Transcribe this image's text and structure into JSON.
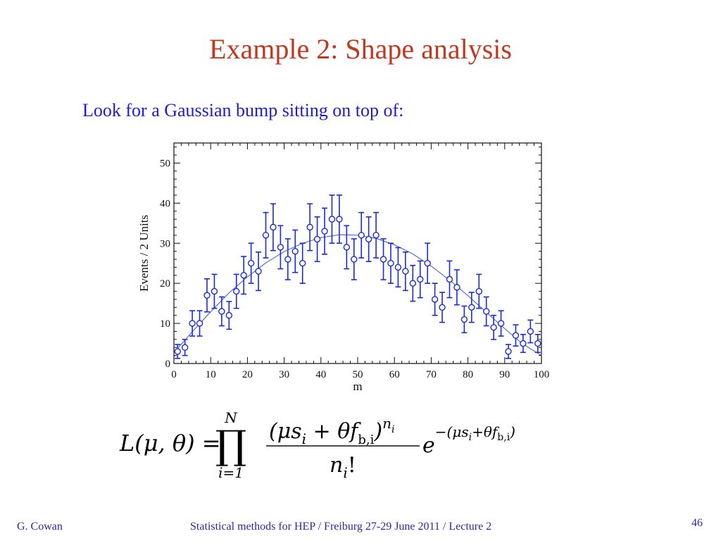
{
  "slide": {
    "title": "Example 2:  Shape analysis",
    "subtitle": "Look for a Gaussian bump sitting on top of:",
    "footer_author": "G. Cowan",
    "footer_course": "Statistical methods for HEP / Freiburg 27-29 June 2011 / Lecture 2",
    "page_number": "46"
  },
  "formula": {
    "lhs": "L(μ, θ) =",
    "product_upper": "N",
    "product_lower": "i=1",
    "numerator": "(μs",
    "numerator_sub_i": "i",
    "numerator_plus": " + θf",
    "numerator_sub_b": "b,i",
    "numerator_close": ")",
    "numerator_power": "n",
    "numerator_power_sub": "i",
    "denominator": "n",
    "denominator_sub": "i",
    "denominator_fact": "!",
    "exp_base": "e",
    "exp_power": "−(μs",
    "exp_sub_i": "i",
    "exp_plus": "+θf",
    "exp_sub_b": "b,i",
    "exp_close": ")"
  },
  "colors": {
    "title": "#c0391e",
    "subtitle": "#1d1bd6",
    "data": "#1a2bd6",
    "curve": "#3a55e0",
    "footer": "#2a2aa8"
  },
  "chart_data": {
    "type": "scatter",
    "xlabel": "m",
    "ylabel": "Events / 2 Units",
    "xlim": [
      0,
      100
    ],
    "ylim": [
      0,
      55
    ],
    "x_ticks": [
      0,
      10,
      20,
      30,
      40,
      50,
      60,
      70,
      80,
      90,
      100
    ],
    "y_ticks": [
      0,
      10,
      20,
      30,
      40,
      50
    ],
    "grid": false,
    "error_bars": "poisson (sqrt(n))",
    "series": [
      {
        "style": "open circles with error bars",
        "x": [
          1,
          3,
          5,
          7,
          9,
          11,
          13,
          15,
          17,
          19,
          21,
          23,
          25,
          27,
          29,
          31,
          33,
          35,
          37,
          39,
          41,
          43,
          45,
          47,
          49,
          51,
          53,
          55,
          57,
          59,
          61,
          63,
          65,
          67,
          69,
          71,
          73,
          75,
          77,
          79,
          81,
          83,
          85,
          87,
          89,
          91,
          93,
          95,
          97,
          99
        ],
        "y": [
          3,
          4,
          10,
          10,
          17,
          18,
          13,
          12,
          18,
          22,
          25,
          23,
          32,
          34,
          29,
          26,
          28,
          25,
          34,
          31,
          33,
          36,
          36,
          29,
          26,
          32,
          31,
          32,
          26,
          25,
          24,
          23,
          20,
          21,
          25,
          16,
          14,
          21,
          19,
          11,
          14,
          18,
          13,
          9,
          10,
          3,
          7,
          5,
          8,
          5
        ]
      },
      {
        "style": "fitted curve",
        "x": [
          0,
          5,
          10,
          15,
          20,
          25,
          30,
          35,
          40,
          45,
          50,
          55,
          60,
          65,
          70,
          75,
          80,
          85,
          90,
          95,
          100
        ],
        "y": [
          2.7,
          7.9,
          12.9,
          17.6,
          21.6,
          25.1,
          27.9,
          30.0,
          31.4,
          32.1,
          32.0,
          31.2,
          29.6,
          27.3,
          24.3,
          20.8,
          16.9,
          12.8,
          8.7,
          4.8,
          2.0
        ]
      }
    ]
  }
}
